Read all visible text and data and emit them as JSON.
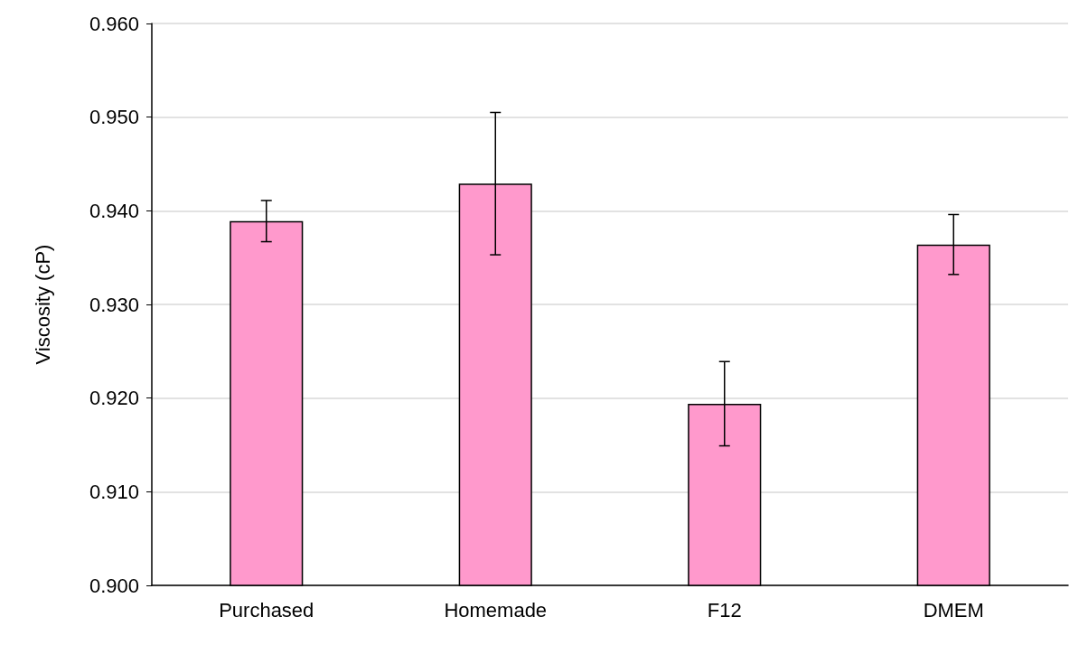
{
  "chart_data": {
    "type": "bar",
    "ylabel": "Viscosity (cP)",
    "categories": [
      "Purchased",
      "Homemade",
      "F12",
      "DMEM"
    ],
    "values": [
      0.9389,
      0.9429,
      0.9194,
      0.9364
    ],
    "errors": [
      0.0022,
      0.0076,
      0.0045,
      0.0032
    ],
    "color": "#ff99cc",
    "ylim": [
      0.9,
      0.96
    ],
    "yticks": [
      {
        "value": 0.9,
        "label": "0.900"
      },
      {
        "value": 0.91,
        "label": "0.910"
      },
      {
        "value": 0.92,
        "label": "0.920"
      },
      {
        "value": 0.93,
        "label": "0.930"
      },
      {
        "value": 0.94,
        "label": "0.940"
      },
      {
        "value": 0.95,
        "label": "0.950"
      },
      {
        "value": 0.96,
        "label": "0.960"
      }
    ],
    "grid": "y"
  }
}
